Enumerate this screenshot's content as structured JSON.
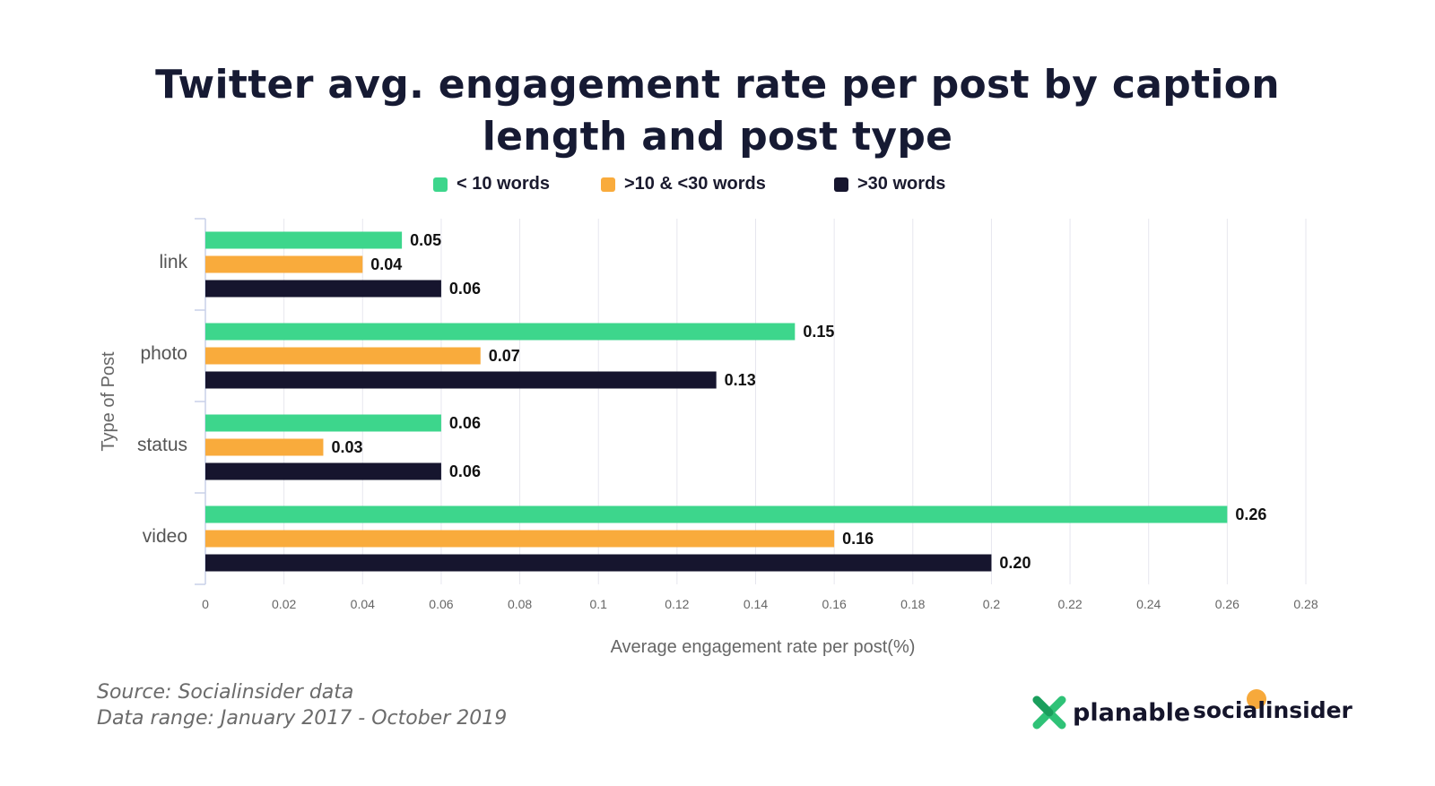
{
  "title": "Twitter avg. engagement rate per post by caption length and post type",
  "legend": [
    {
      "label": "< 10 words",
      "color": "#3dd68c"
    },
    {
      "label": ">10 & <30 words",
      "color": "#f9ab3c"
    },
    {
      "label": ">30 words",
      "color": "#16152e"
    }
  ],
  "chart_data": {
    "type": "bar",
    "orientation": "horizontal",
    "categories": [
      "link",
      "photo",
      "status",
      "video"
    ],
    "series": [
      {
        "name": "< 10 words",
        "color": "#3dd68c",
        "values": [
          0.05,
          0.15,
          0.06,
          0.26
        ],
        "labels": [
          "0.05",
          "0.15",
          "0.06",
          "0.26"
        ]
      },
      {
        "name": ">10 & <30 words",
        "color": "#f9ab3c",
        "values": [
          0.04,
          0.07,
          0.03,
          0.16
        ],
        "labels": [
          "0.04",
          "0.07",
          "0.03",
          "0.16"
        ]
      },
      {
        "name": ">30 words",
        "color": "#16152e",
        "values": [
          0.06,
          0.13,
          0.06,
          0.2
        ],
        "labels": [
          "0.06",
          "0.13",
          "0.06",
          "0.20"
        ]
      }
    ],
    "xlabel": "Average engagement rate per post(%)",
    "ylabel": "Type of Post",
    "xlim": [
      0,
      0.28
    ],
    "xticks": [
      "0",
      "0.02",
      "0.04",
      "0.06",
      "0.08",
      "0.1",
      "0.12",
      "0.14",
      "0.16",
      "0.18",
      "0.2",
      "0.22",
      "0.24",
      "0.26",
      "0.28"
    ],
    "grid": true,
    "legend_position": "top"
  },
  "footer": {
    "source": "Source: Socialinsider data",
    "range": "Data range: January 2017 - October 2019"
  },
  "logos": {
    "planable": "planable",
    "socialinsider": "socialinsider"
  }
}
